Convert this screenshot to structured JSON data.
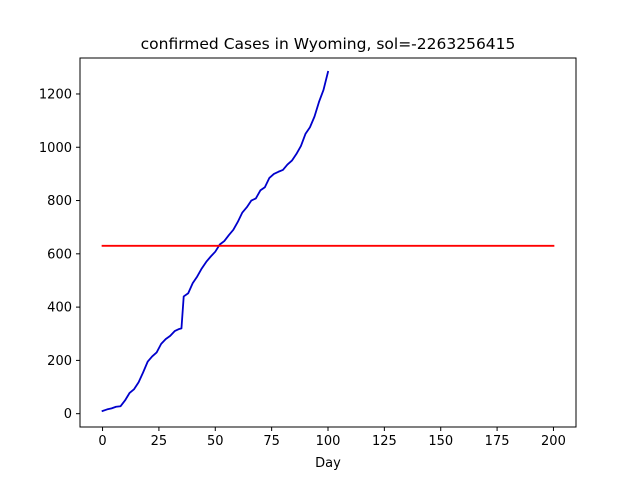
{
  "chart_data": {
    "type": "line",
    "title": "confirmed Cases in Wyoming, sol=-2263256415",
    "xlabel": "Day",
    "ylabel": "",
    "xlim": [
      -10,
      210
    ],
    "ylim": [
      -50,
      1335
    ],
    "xticks": [
      0,
      25,
      50,
      75,
      100,
      125,
      150,
      175,
      200
    ],
    "yticks": [
      0,
      200,
      400,
      600,
      800,
      1000,
      1200
    ],
    "grid": false,
    "series": [
      {
        "color": "#0000cc",
        "x": [
          0,
          2,
          4,
          6,
          8,
          10,
          12,
          14,
          16,
          18,
          20,
          22,
          24,
          26,
          28,
          30,
          32,
          34,
          35,
          36,
          38,
          40,
          42,
          44,
          46,
          48,
          50,
          52,
          54,
          56,
          58,
          60,
          62,
          64,
          66,
          68,
          70,
          72,
          74,
          76,
          78,
          80,
          82,
          84,
          86,
          88,
          90,
          92,
          94,
          96,
          98,
          100
        ],
        "y": [
          10,
          16,
          20,
          26,
          28,
          50,
          78,
          92,
          118,
          155,
          195,
          215,
          230,
          262,
          280,
          292,
          310,
          318,
          320,
          440,
          452,
          490,
          515,
          545,
          570,
          590,
          608,
          635,
          648,
          670,
          690,
          720,
          755,
          775,
          800,
          808,
          838,
          850,
          885,
          900,
          908,
          915,
          935,
          950,
          975,
          1005,
          1050,
          1075,
          1115,
          1170,
          1215,
          1283
        ]
      },
      {
        "color": "#ff0000",
        "x": [
          0,
          200
        ],
        "y": [
          630,
          630
        ]
      }
    ]
  }
}
